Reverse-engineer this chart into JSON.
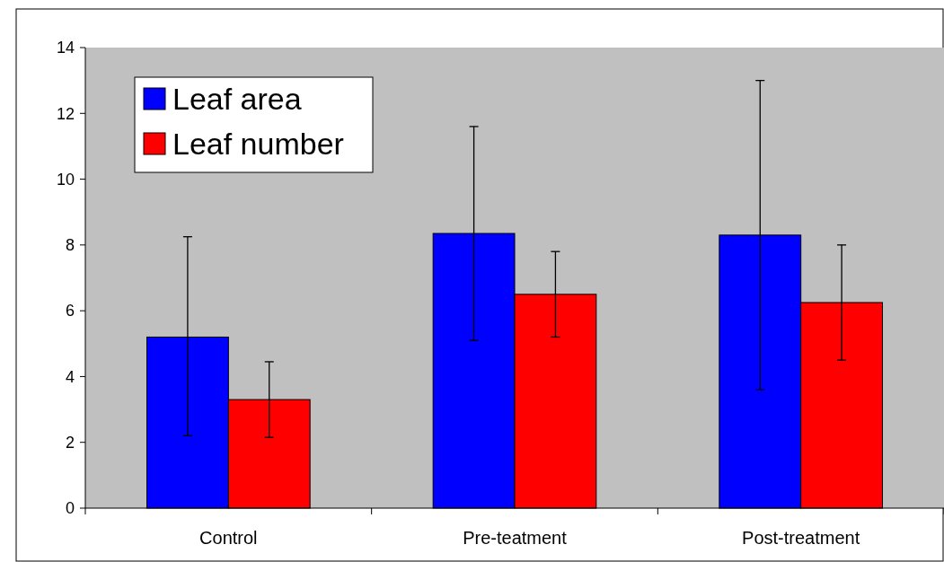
{
  "chart_data": {
    "type": "bar",
    "categories": [
      "Control",
      "Pre-teatment",
      "Post-treatment"
    ],
    "series": [
      {
        "name": "Leaf area",
        "color": "#0000ff",
        "values": [
          5.2,
          8.35,
          8.3
        ],
        "errors": [
          [
            2.2,
            8.25
          ],
          [
            5.1,
            11.6
          ],
          [
            3.6,
            13.0
          ]
        ]
      },
      {
        "name": "Leaf number",
        "color": "#ff0000",
        "values": [
          3.3,
          6.5,
          6.25
        ],
        "errors": [
          [
            2.15,
            4.45
          ],
          [
            5.2,
            7.8
          ],
          [
            4.5,
            8.0
          ]
        ]
      }
    ],
    "ylim": [
      0,
      14
    ],
    "yticks": [
      0,
      2,
      4,
      6,
      8,
      10,
      12,
      14
    ],
    "grid": false,
    "legend": "top left"
  }
}
